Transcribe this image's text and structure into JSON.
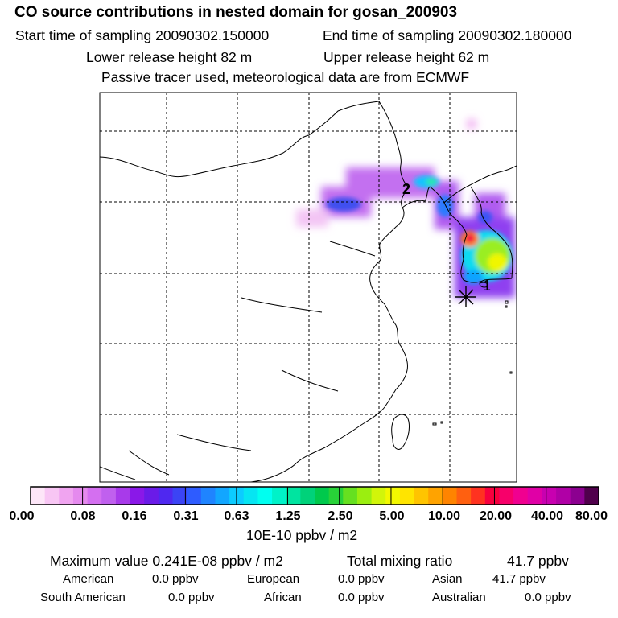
{
  "header": {
    "title": "CO  source contributions in nested domain for gosan_200903",
    "start_time": "Start time of sampling 20090302.150000",
    "end_time": "End time of sampling 20090302.180000",
    "lower_release": "Lower release height   82 m",
    "upper_release": "Upper release height   62 m",
    "tracer_note": "Passive tracer used, meteorological data are from ECMWF"
  },
  "map": {
    "markers": [
      {
        "label": "1",
        "description": "receptor site"
      },
      {
        "label": "2",
        "description": "source location"
      }
    ]
  },
  "colorbar": {
    "colors": [
      "#fde6f8",
      "#f8c6f4",
      "#f0a4f0",
      "#e58aee",
      "#d46ff0",
      "#c060ee",
      "#a83aea",
      "#8a18e8",
      "#6a1be8",
      "#4f28f0",
      "#3b44f5",
      "#2e5cff",
      "#1f84ff",
      "#12a6ff",
      "#0ccbff",
      "#06e5f2",
      "#00fff0",
      "#00f2c8",
      "#00e4a0",
      "#00d27a",
      "#00c94c",
      "#28d238",
      "#66e020",
      "#9bee10",
      "#d2f50a",
      "#f3f800",
      "#ffe400",
      "#ffc400",
      "#ffa300",
      "#ff8400",
      "#ff6010",
      "#ff3220",
      "#f7003e",
      "#f7006a",
      "#f00090",
      "#e000a6",
      "#c800b0",
      "#b000a6",
      "#8c0090",
      "#50004c"
    ],
    "tick_labels": [
      "0.00",
      "0.08",
      "0.16",
      "0.31",
      "0.63",
      "1.25",
      "2.50",
      "5.00",
      "10.00",
      "20.00",
      "40.00",
      "80.00"
    ],
    "unit": "10E-10 ppbv / m2"
  },
  "summary": {
    "maximum_label": "Maximum value  0.241E-08 ppbv / m2",
    "total_label": "Total mixing ratio",
    "total_value": "41.7 ppbv",
    "regions": [
      {
        "name": "American",
        "value": "0.0 ppbv"
      },
      {
        "name": "European",
        "value": "0.0 ppbv"
      },
      {
        "name": "Asian",
        "value": "41.7 ppbv"
      },
      {
        "name": "South American",
        "value": "0.0 ppbv"
      },
      {
        "name": "African",
        "value": "0.0 ppbv"
      },
      {
        "name": "Australian",
        "value": "0.0 ppbv"
      }
    ]
  }
}
